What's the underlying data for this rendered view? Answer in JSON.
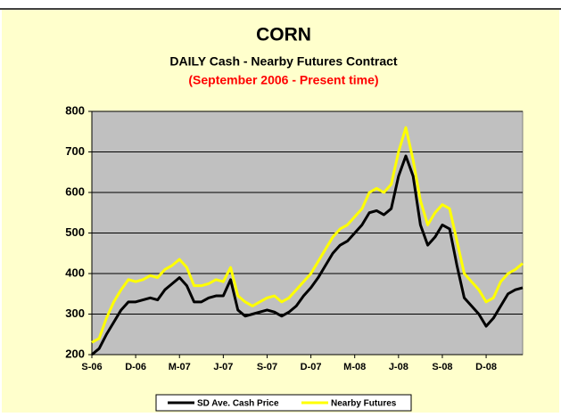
{
  "chart_data": {
    "type": "line",
    "title": "CORN",
    "subtitle": "DAILY Cash - Nearby Futures Contract",
    "subtitle2": "(September 2006 - Present time)",
    "categories": [
      "S-06",
      null,
      null,
      null,
      null,
      null,
      "D-06",
      null,
      null,
      null,
      null,
      null,
      "M-07",
      null,
      null,
      null,
      null,
      null,
      "J-07",
      null,
      null,
      null,
      null,
      null,
      "S-07",
      null,
      null,
      null,
      null,
      null,
      "D-07",
      null,
      null,
      null,
      null,
      null,
      "M-08",
      null,
      null,
      null,
      null,
      null,
      "J-08",
      null,
      null,
      null,
      null,
      null,
      "S-08",
      null,
      null,
      null,
      null,
      null,
      "D-08",
      null,
      null,
      null,
      null,
      null
    ],
    "series": [
      {
        "name": "SD Ave. Cash Price",
        "color": "#000000",
        "values": [
          200,
          215,
          250,
          280,
          310,
          330,
          330,
          335,
          340,
          335,
          360,
          375,
          390,
          370,
          330,
          330,
          340,
          345,
          345,
          385,
          310,
          295,
          300,
          305,
          310,
          305,
          295,
          305,
          320,
          345,
          365,
          390,
          420,
          450,
          470,
          480,
          500,
          520,
          550,
          555,
          545,
          560,
          640,
          690,
          640,
          520,
          470,
          490,
          520,
          510,
          420,
          340,
          320,
          300,
          270,
          290,
          320,
          350,
          360,
          365
        ]
      },
      {
        "name": "Nearby Futures",
        "color": "#ffff00",
        "values": [
          230,
          240,
          290,
          330,
          360,
          385,
          380,
          385,
          395,
          390,
          410,
          420,
          435,
          415,
          370,
          370,
          375,
          385,
          380,
          415,
          345,
          330,
          320,
          330,
          340,
          345,
          330,
          340,
          360,
          380,
          400,
          430,
          460,
          490,
          510,
          520,
          540,
          560,
          600,
          610,
          600,
          620,
          700,
          760,
          680,
          580,
          520,
          550,
          570,
          560,
          480,
          400,
          380,
          360,
          330,
          340,
          380,
          400,
          410,
          425
        ]
      }
    ],
    "ylim": [
      200,
      800
    ],
    "yticks": [
      200,
      300,
      400,
      500,
      600,
      700,
      800
    ],
    "grid": true
  }
}
